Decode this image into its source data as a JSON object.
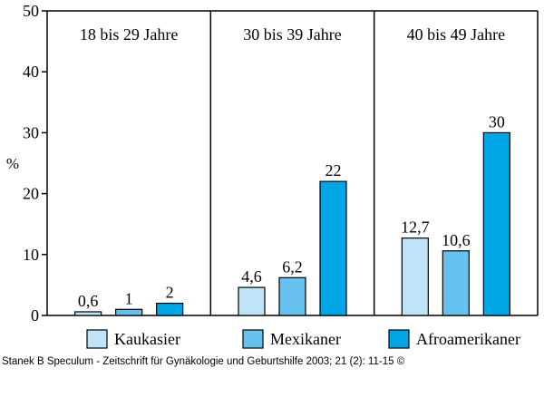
{
  "chart_data": {
    "type": "bar",
    "ylabel": "%",
    "ylim": [
      0,
      50
    ],
    "yticks": [
      0,
      10,
      20,
      30,
      40,
      50
    ],
    "grid": false,
    "legend_position": "bottom",
    "groups": [
      "18 bis 29 Jahre",
      "30 bis 39 Jahre",
      "40 bis 49 Jahre"
    ],
    "series": [
      {
        "name": "Kaukasier",
        "color": "#bfe3f7",
        "values": [
          0.6,
          4.6,
          12.7
        ],
        "labels": [
          "0,6",
          "4,6",
          "12,7"
        ]
      },
      {
        "name": "Mexikaner",
        "color": "#66c1ee",
        "values": [
          1,
          6.2,
          10.6
        ],
        "labels": [
          "1",
          "6,2",
          "10,6"
        ]
      },
      {
        "name": "Afroamerikaner",
        "color": "#00a5e6",
        "values": [
          2,
          22,
          30
        ],
        "labels": [
          "2",
          "22",
          "30"
        ]
      }
    ]
  },
  "caption": "Stanek B Speculum - Zeitschrift für Gynäkologie und Geburtshilfe 2003; 21 (2): 11-15 ©"
}
